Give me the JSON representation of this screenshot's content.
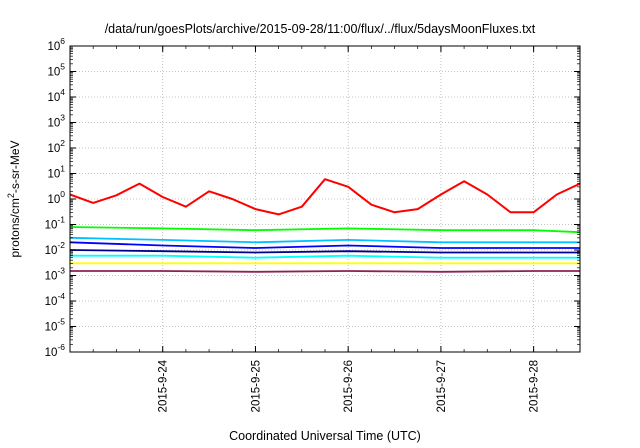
{
  "chart_data": {
    "type": "line",
    "title": "/data/run/goesPlots/archive/2015-09-28/11:00/flux/../flux/5daysMoonFluxes.txt",
    "xlabel": "Coordinated Universal Time (UTC)",
    "ylabel": {
      "prefix": "protons/cm",
      "sup": "2",
      "suffix": "-s-sr-MeV"
    },
    "x_range": [
      "2015-09-23T00:00",
      "2015-09-28T12:00"
    ],
    "x_ticks": [
      "2015-9-24",
      "2015-9-25",
      "2015-9-26",
      "2015-9-27",
      "2015-9-28"
    ],
    "y_scale": "log",
    "ylim": [
      1e-06,
      1000000.0
    ],
    "y_tick_labels": [
      {
        "base": "10",
        "exp": "-6"
      },
      {
        "base": "10",
        "exp": "-5"
      },
      {
        "base": "10",
        "exp": "-4"
      },
      {
        "base": "10",
        "exp": "-3"
      },
      {
        "base": "10",
        "exp": "-2"
      },
      {
        "base": "10",
        "exp": "-1"
      },
      {
        "base": "10",
        "exp": "0"
      },
      {
        "base": "10",
        "exp": "1"
      },
      {
        "base": "10",
        "exp": "2"
      },
      {
        "base": "10",
        "exp": "3"
      },
      {
        "base": "10",
        "exp": "4"
      },
      {
        "base": "10",
        "exp": "5"
      },
      {
        "base": "10",
        "exp": "6"
      }
    ],
    "grid": true,
    "series": [
      {
        "color": "#ff0000",
        "x": [
          "2015-09-23T00:00",
          "2015-09-23T06:00",
          "2015-09-23T12:00",
          "2015-09-23T18:00",
          "2015-09-24T00:00",
          "2015-09-24T06:00",
          "2015-09-24T12:00",
          "2015-09-24T18:00",
          "2015-09-25T00:00",
          "2015-09-25T06:00",
          "2015-09-25T12:00",
          "2015-09-25T18:00",
          "2015-09-26T00:00",
          "2015-09-26T06:00",
          "2015-09-26T12:00",
          "2015-09-26T18:00",
          "2015-09-27T00:00",
          "2015-09-27T06:00",
          "2015-09-27T12:00",
          "2015-09-27T18:00",
          "2015-09-28T00:00",
          "2015-09-28T06:00",
          "2015-09-28T12:00"
        ],
        "y": [
          1.5,
          0.7,
          1.4,
          4.0,
          1.2,
          0.5,
          2.0,
          1.0,
          0.4,
          0.25,
          0.5,
          6.0,
          3.0,
          0.6,
          0.3,
          0.4,
          1.5,
          5.0,
          1.5,
          0.3,
          0.3,
          1.5,
          4.0
        ]
      },
      {
        "color": "#00ff00",
        "x": [
          "2015-09-23T00:00",
          "2015-09-24T00:00",
          "2015-09-25T00:00",
          "2015-09-26T00:00",
          "2015-09-27T00:00",
          "2015-09-28T00:00",
          "2015-09-28T12:00"
        ],
        "y": [
          0.08,
          0.07,
          0.06,
          0.07,
          0.06,
          0.06,
          0.05
        ]
      },
      {
        "color": "#00c0ff",
        "x": [
          "2015-09-23T00:00",
          "2015-09-24T00:00",
          "2015-09-25T00:00",
          "2015-09-26T00:00",
          "2015-09-27T00:00",
          "2015-09-28T00:00",
          "2015-09-28T12:00"
        ],
        "y": [
          0.03,
          0.025,
          0.02,
          0.025,
          0.02,
          0.02,
          0.02
        ]
      },
      {
        "color": "#0000ff",
        "x": [
          "2015-09-23T00:00",
          "2015-09-24T00:00",
          "2015-09-25T00:00",
          "2015-09-26T00:00",
          "2015-09-27T00:00",
          "2015-09-28T00:00",
          "2015-09-28T12:00"
        ],
        "y": [
          0.02,
          0.015,
          0.012,
          0.015,
          0.012,
          0.012,
          0.012
        ]
      },
      {
        "color": "#00008b",
        "x": [
          "2015-09-23T00:00",
          "2015-09-24T00:00",
          "2015-09-25T00:00",
          "2015-09-26T00:00",
          "2015-09-27T00:00",
          "2015-09-28T00:00",
          "2015-09-28T12:00"
        ],
        "y": [
          0.01,
          0.009,
          0.008,
          0.009,
          0.008,
          0.008,
          0.008
        ]
      },
      {
        "color": "#00ffff",
        "x": [
          "2015-09-23T00:00",
          "2015-09-24T00:00",
          "2015-09-25T00:00",
          "2015-09-26T00:00",
          "2015-09-27T00:00",
          "2015-09-28T00:00",
          "2015-09-28T12:00"
        ],
        "y": [
          0.006,
          0.006,
          0.005,
          0.006,
          0.005,
          0.005,
          0.005
        ]
      },
      {
        "color": "#ffff00",
        "x": [
          "2015-09-23T00:00",
          "2015-09-24T00:00",
          "2015-09-25T00:00",
          "2015-09-26T00:00",
          "2015-09-27T00:00",
          "2015-09-28T00:00",
          "2015-09-28T12:00"
        ],
        "y": [
          0.003,
          0.003,
          0.003,
          0.003,
          0.003,
          0.003,
          0.003
        ]
      },
      {
        "color": "#8b2252",
        "x": [
          "2015-09-23T00:00",
          "2015-09-24T00:00",
          "2015-09-25T00:00",
          "2015-09-26T00:00",
          "2015-09-27T00:00",
          "2015-09-28T00:00",
          "2015-09-28T12:00"
        ],
        "y": [
          0.0015,
          0.0015,
          0.0014,
          0.0015,
          0.0014,
          0.0015,
          0.0015
        ]
      }
    ]
  }
}
